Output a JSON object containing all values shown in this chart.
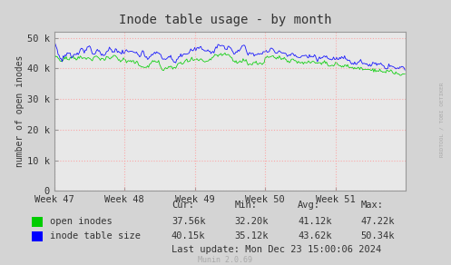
{
  "title": "Inode table usage - by month",
  "ylabel": "number of open inodes",
  "background_color": "#d4d4d4",
  "plot_bg_color": "#e8e8e8",
  "grid_color": "#ff9999",
  "yticks": [
    0,
    10000,
    20000,
    30000,
    40000,
    50000
  ],
  "ytick_labels": [
    "0",
    "10 k",
    "20 k",
    "30 k",
    "40 k",
    "50 k"
  ],
  "ylim": [
    0,
    52000
  ],
  "xlim": [
    0,
    350
  ],
  "xtick_positions": [
    0,
    70,
    140,
    210,
    280
  ],
  "xtick_labels": [
    "Week 47",
    "Week 48",
    "Week 49",
    "Week 50",
    "Week 51"
  ],
  "vline_positions": [
    0,
    70,
    140,
    210,
    280
  ],
  "open_inodes_color": "#00cc00",
  "inode_table_color": "#0000ff",
  "legend_entries": [
    "open inodes",
    "inode table size"
  ],
  "stats_open": [
    "37.56k",
    "32.20k",
    "41.12k",
    "47.22k"
  ],
  "stats_inode": [
    "40.15k",
    "35.12k",
    "43.62k",
    "50.34k"
  ],
  "last_update": "Last update: Mon Dec 23 15:00:06 2024",
  "munin_version": "Munin 2.0.69",
  "watermark": "RRDTOOL / TOBI OETIKER",
  "title_color": "#333333",
  "axis_color": "#999999",
  "text_color": "#333333"
}
